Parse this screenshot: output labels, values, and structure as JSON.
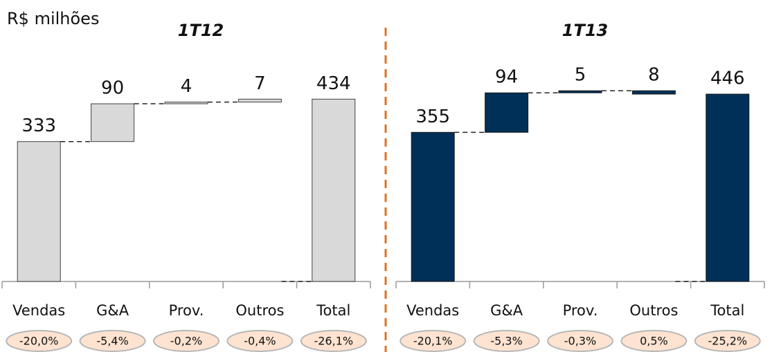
{
  "unit_label": "R$ milhões",
  "chart_data": [
    {
      "type": "waterfall",
      "title": "1T12",
      "categories": [
        "Vendas",
        "G&A",
        "Prov.",
        "Outros",
        "Total"
      ],
      "values": [
        333,
        90,
        4,
        7,
        434
      ],
      "steps": [
        "total",
        "up",
        "up",
        "up",
        "total"
      ],
      "color": "#d9d9d9",
      "edge_color": "#404040",
      "ylim": [
        0,
        670
      ],
      "shares": [
        {
          "value": -20.0,
          "label": "-20,0%"
        },
        {
          "value": -5.4,
          "label": "-5,4%"
        },
        {
          "value": -0.2,
          "label": "-0,2%"
        },
        {
          "value": -0.4,
          "label": "-0,4%"
        },
        {
          "value": -26.1,
          "label": "-26,1%"
        }
      ]
    },
    {
      "type": "waterfall",
      "title": "1T13",
      "categories": [
        "Vendas",
        "G&A",
        "Prov.",
        "Outros",
        "Total"
      ],
      "values": [
        355,
        94,
        5,
        8,
        446
      ],
      "steps": [
        "total",
        "up",
        "up",
        "down",
        "total"
      ],
      "color": "#003057",
      "edge_color": "#1a1a1a",
      "ylim": [
        0,
        670
      ],
      "shares": [
        {
          "value": -20.1,
          "label": "-20,1%"
        },
        {
          "value": -5.3,
          "label": "-5,3%"
        },
        {
          "value": -0.3,
          "label": "-0,3%"
        },
        {
          "value": 0.5,
          "label": "0,5%"
        },
        {
          "value": -25.2,
          "label": "-25,2%"
        }
      ]
    }
  ]
}
